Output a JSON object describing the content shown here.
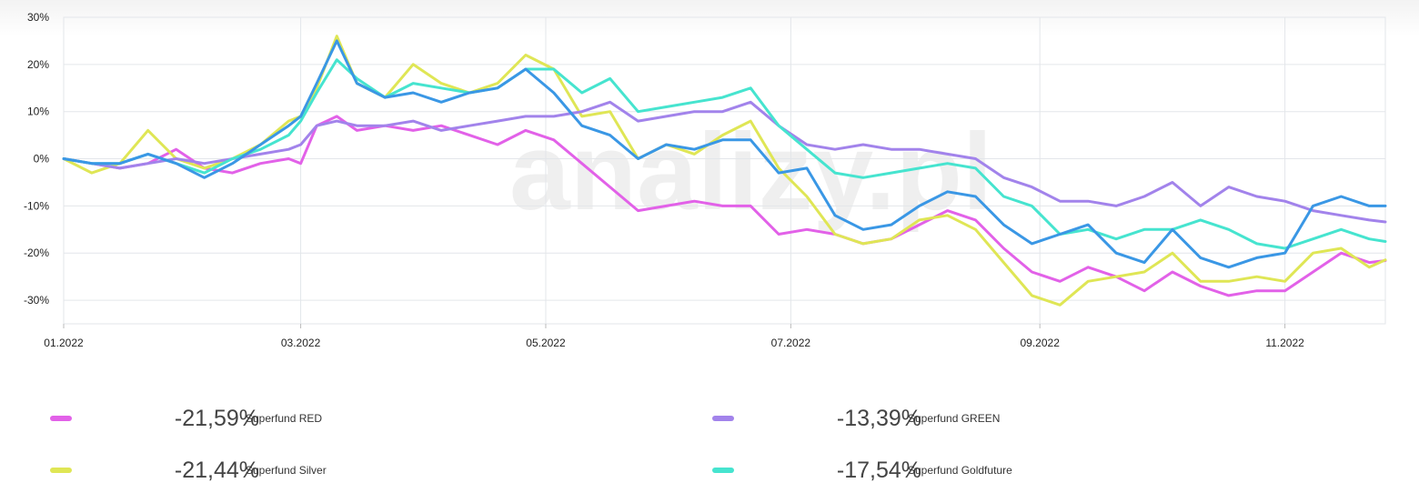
{
  "chart_data": {
    "type": "line",
    "y_ticks": [
      "30%",
      "20%",
      "10%",
      "0%",
      "-10%",
      "-20%",
      "-30%"
    ],
    "y_tick_values": [
      30,
      20,
      10,
      0,
      -10,
      -20,
      -30
    ],
    "x_ticks": [
      "01.2022",
      "03.2022",
      "05.2022",
      "07.2022",
      "09.2022",
      "11.2022"
    ],
    "x_tick_values": [
      "2022-01-01",
      "2022-03-01",
      "2022-05-01",
      "2022-07-01",
      "2022-09-01",
      "2022-11-01"
    ],
    "xlim": [
      "2022-01-01",
      "2022-11-26"
    ],
    "ylim": [
      -35,
      30
    ],
    "grid": true,
    "series": [
      {
        "name": "Superfund RED",
        "color": "#e261e8",
        "value_label": "-21,59%",
        "points": [
          [
            "2022-01-01",
            0
          ],
          [
            "2022-01-08",
            -1
          ],
          [
            "2022-01-15",
            -2
          ],
          [
            "2022-01-22",
            -1
          ],
          [
            "2022-01-29",
            2
          ],
          [
            "2022-02-05",
            -2
          ],
          [
            "2022-02-12",
            -3
          ],
          [
            "2022-02-19",
            -1
          ],
          [
            "2022-02-26",
            0
          ],
          [
            "2022-03-01",
            -1
          ],
          [
            "2022-03-05",
            7
          ],
          [
            "2022-03-10",
            9
          ],
          [
            "2022-03-15",
            6
          ],
          [
            "2022-03-22",
            7
          ],
          [
            "2022-03-29",
            6
          ],
          [
            "2022-04-05",
            7
          ],
          [
            "2022-04-12",
            5
          ],
          [
            "2022-04-19",
            3
          ],
          [
            "2022-04-26",
            6
          ],
          [
            "2022-05-03",
            4
          ],
          [
            "2022-05-10",
            -1
          ],
          [
            "2022-05-17",
            -6
          ],
          [
            "2022-05-24",
            -11
          ],
          [
            "2022-05-31",
            -10
          ],
          [
            "2022-06-07",
            -9
          ],
          [
            "2022-06-14",
            -10
          ],
          [
            "2022-06-21",
            -10
          ],
          [
            "2022-06-28",
            -16
          ],
          [
            "2022-07-05",
            -15
          ],
          [
            "2022-07-12",
            -16
          ],
          [
            "2022-07-19",
            -18
          ],
          [
            "2022-07-26",
            -17
          ],
          [
            "2022-08-02",
            -14
          ],
          [
            "2022-08-09",
            -11
          ],
          [
            "2022-08-16",
            -13
          ],
          [
            "2022-08-23",
            -19
          ],
          [
            "2022-08-30",
            -24
          ],
          [
            "2022-09-06",
            -26
          ],
          [
            "2022-09-13",
            -23
          ],
          [
            "2022-09-20",
            -25
          ],
          [
            "2022-09-27",
            -28
          ],
          [
            "2022-10-04",
            -24
          ],
          [
            "2022-10-11",
            -27
          ],
          [
            "2022-10-18",
            -29
          ],
          [
            "2022-10-25",
            -28
          ],
          [
            "2022-11-01",
            -28
          ],
          [
            "2022-11-08",
            -24
          ],
          [
            "2022-11-15",
            -20
          ],
          [
            "2022-11-22",
            -22
          ],
          [
            "2022-11-26",
            -21.59
          ]
        ]
      },
      {
        "name": "Superfund Silver",
        "color": "#dfe655",
        "value_label": "-21,44%",
        "points": [
          [
            "2022-01-01",
            0
          ],
          [
            "2022-01-08",
            -3
          ],
          [
            "2022-01-15",
            -1
          ],
          [
            "2022-01-22",
            6
          ],
          [
            "2022-01-29",
            0
          ],
          [
            "2022-02-05",
            -2
          ],
          [
            "2022-02-12",
            0
          ],
          [
            "2022-02-19",
            3
          ],
          [
            "2022-02-26",
            8
          ],
          [
            "2022-03-01",
            9
          ],
          [
            "2022-03-05",
            15
          ],
          [
            "2022-03-10",
            26
          ],
          [
            "2022-03-15",
            16
          ],
          [
            "2022-03-22",
            13
          ],
          [
            "2022-03-29",
            20
          ],
          [
            "2022-04-05",
            16
          ],
          [
            "2022-04-12",
            14
          ],
          [
            "2022-04-19",
            16
          ],
          [
            "2022-04-26",
            22
          ],
          [
            "2022-05-03",
            19
          ],
          [
            "2022-05-10",
            9
          ],
          [
            "2022-05-17",
            10
          ],
          [
            "2022-05-24",
            0
          ],
          [
            "2022-05-31",
            3
          ],
          [
            "2022-06-07",
            1
          ],
          [
            "2022-06-14",
            5
          ],
          [
            "2022-06-21",
            8
          ],
          [
            "2022-06-28",
            -2
          ],
          [
            "2022-07-05",
            -8
          ],
          [
            "2022-07-12",
            -16
          ],
          [
            "2022-07-19",
            -18
          ],
          [
            "2022-07-26",
            -17
          ],
          [
            "2022-08-02",
            -13
          ],
          [
            "2022-08-09",
            -12
          ],
          [
            "2022-08-16",
            -15
          ],
          [
            "2022-08-23",
            -22
          ],
          [
            "2022-08-30",
            -29
          ],
          [
            "2022-09-06",
            -31
          ],
          [
            "2022-09-13",
            -26
          ],
          [
            "2022-09-20",
            -25
          ],
          [
            "2022-09-27",
            -24
          ],
          [
            "2022-10-04",
            -20
          ],
          [
            "2022-10-11",
            -26
          ],
          [
            "2022-10-18",
            -26
          ],
          [
            "2022-10-25",
            -25
          ],
          [
            "2022-11-01",
            -26
          ],
          [
            "2022-11-08",
            -20
          ],
          [
            "2022-11-15",
            -19
          ],
          [
            "2022-11-22",
            -23
          ],
          [
            "2022-11-26",
            -21.44
          ]
        ]
      },
      {
        "name": "Superfund GREEN",
        "color": "#a283eb",
        "value_label": "-13,39%",
        "points": [
          [
            "2022-01-01",
            0
          ],
          [
            "2022-01-08",
            -1
          ],
          [
            "2022-01-15",
            -2
          ],
          [
            "2022-01-22",
            -1
          ],
          [
            "2022-01-29",
            0
          ],
          [
            "2022-02-05",
            -1
          ],
          [
            "2022-02-12",
            0
          ],
          [
            "2022-02-19",
            1
          ],
          [
            "2022-02-26",
            2
          ],
          [
            "2022-03-01",
            3
          ],
          [
            "2022-03-05",
            7
          ],
          [
            "2022-03-10",
            8
          ],
          [
            "2022-03-15",
            7
          ],
          [
            "2022-03-22",
            7
          ],
          [
            "2022-03-29",
            8
          ],
          [
            "2022-04-05",
            6
          ],
          [
            "2022-04-12",
            7
          ],
          [
            "2022-04-19",
            8
          ],
          [
            "2022-04-26",
            9
          ],
          [
            "2022-05-03",
            9
          ],
          [
            "2022-05-10",
            10
          ],
          [
            "2022-05-17",
            12
          ],
          [
            "2022-05-24",
            8
          ],
          [
            "2022-05-31",
            9
          ],
          [
            "2022-06-07",
            10
          ],
          [
            "2022-06-14",
            10
          ],
          [
            "2022-06-21",
            12
          ],
          [
            "2022-06-28",
            7
          ],
          [
            "2022-07-05",
            3
          ],
          [
            "2022-07-12",
            2
          ],
          [
            "2022-07-19",
            3
          ],
          [
            "2022-07-26",
            2
          ],
          [
            "2022-08-02",
            2
          ],
          [
            "2022-08-09",
            1
          ],
          [
            "2022-08-16",
            0
          ],
          [
            "2022-08-23",
            -4
          ],
          [
            "2022-08-30",
            -6
          ],
          [
            "2022-09-06",
            -9
          ],
          [
            "2022-09-13",
            -9
          ],
          [
            "2022-09-20",
            -10
          ],
          [
            "2022-09-27",
            -8
          ],
          [
            "2022-10-04",
            -5
          ],
          [
            "2022-10-11",
            -10
          ],
          [
            "2022-10-18",
            -6
          ],
          [
            "2022-10-25",
            -8
          ],
          [
            "2022-11-01",
            -9
          ],
          [
            "2022-11-08",
            -11
          ],
          [
            "2022-11-15",
            -12
          ],
          [
            "2022-11-22",
            -13
          ],
          [
            "2022-11-26",
            -13.39
          ]
        ]
      },
      {
        "name": "Superfund Goldfuture",
        "color": "#46e4cf",
        "value_label": "-17,54%",
        "points": [
          [
            "2022-01-01",
            0
          ],
          [
            "2022-01-08",
            -1
          ],
          [
            "2022-01-15",
            -1
          ],
          [
            "2022-01-22",
            1
          ],
          [
            "2022-01-29",
            -1
          ],
          [
            "2022-02-05",
            -3
          ],
          [
            "2022-02-12",
            0
          ],
          [
            "2022-02-19",
            2
          ],
          [
            "2022-02-26",
            5
          ],
          [
            "2022-03-01",
            8
          ],
          [
            "2022-03-05",
            14
          ],
          [
            "2022-03-10",
            21
          ],
          [
            "2022-03-15",
            17
          ],
          [
            "2022-03-22",
            13
          ],
          [
            "2022-03-29",
            16
          ],
          [
            "2022-04-05",
            15
          ],
          [
            "2022-04-12",
            14
          ],
          [
            "2022-04-19",
            15
          ],
          [
            "2022-04-26",
            19
          ],
          [
            "2022-05-03",
            19
          ],
          [
            "2022-05-10",
            14
          ],
          [
            "2022-05-17",
            17
          ],
          [
            "2022-05-24",
            10
          ],
          [
            "2022-05-31",
            11
          ],
          [
            "2022-06-07",
            12
          ],
          [
            "2022-06-14",
            13
          ],
          [
            "2022-06-21",
            15
          ],
          [
            "2022-06-28",
            7
          ],
          [
            "2022-07-05",
            2
          ],
          [
            "2022-07-12",
            -3
          ],
          [
            "2022-07-19",
            -4
          ],
          [
            "2022-07-26",
            -3
          ],
          [
            "2022-08-02",
            -2
          ],
          [
            "2022-08-09",
            -1
          ],
          [
            "2022-08-16",
            -2
          ],
          [
            "2022-08-23",
            -8
          ],
          [
            "2022-08-30",
            -10
          ],
          [
            "2022-09-06",
            -16
          ],
          [
            "2022-09-13",
            -15
          ],
          [
            "2022-09-20",
            -17
          ],
          [
            "2022-09-27",
            -15
          ],
          [
            "2022-10-04",
            -15
          ],
          [
            "2022-10-11",
            -13
          ],
          [
            "2022-10-18",
            -15
          ],
          [
            "2022-10-25",
            -18
          ],
          [
            "2022-11-01",
            -19
          ],
          [
            "2022-11-08",
            -17
          ],
          [
            "2022-11-15",
            -15
          ],
          [
            "2022-11-22",
            -17
          ],
          [
            "2022-11-26",
            -17.54
          ]
        ]
      },
      {
        "name": "",
        "color": "#3a97e5",
        "value_label": "",
        "points": [
          [
            "2022-01-01",
            0
          ],
          [
            "2022-01-08",
            -1
          ],
          [
            "2022-01-15",
            -1
          ],
          [
            "2022-01-22",
            1
          ],
          [
            "2022-01-29",
            -1
          ],
          [
            "2022-02-05",
            -4
          ],
          [
            "2022-02-12",
            -1
          ],
          [
            "2022-02-19",
            3
          ],
          [
            "2022-02-26",
            7
          ],
          [
            "2022-03-01",
            9
          ],
          [
            "2022-03-05",
            16
          ],
          [
            "2022-03-10",
            25
          ],
          [
            "2022-03-15",
            16
          ],
          [
            "2022-03-22",
            13
          ],
          [
            "2022-03-29",
            14
          ],
          [
            "2022-04-05",
            12
          ],
          [
            "2022-04-12",
            14
          ],
          [
            "2022-04-19",
            15
          ],
          [
            "2022-04-26",
            19
          ],
          [
            "2022-05-03",
            14
          ],
          [
            "2022-05-10",
            7
          ],
          [
            "2022-05-17",
            5
          ],
          [
            "2022-05-24",
            0
          ],
          [
            "2022-05-31",
            3
          ],
          [
            "2022-06-07",
            2
          ],
          [
            "2022-06-14",
            4
          ],
          [
            "2022-06-21",
            4
          ],
          [
            "2022-06-28",
            -3
          ],
          [
            "2022-07-05",
            -2
          ],
          [
            "2022-07-12",
            -12
          ],
          [
            "2022-07-19",
            -15
          ],
          [
            "2022-07-26",
            -14
          ],
          [
            "2022-08-02",
            -10
          ],
          [
            "2022-08-09",
            -7
          ],
          [
            "2022-08-16",
            -8
          ],
          [
            "2022-08-23",
            -14
          ],
          [
            "2022-08-30",
            -18
          ],
          [
            "2022-09-06",
            -16
          ],
          [
            "2022-09-13",
            -14
          ],
          [
            "2022-09-20",
            -20
          ],
          [
            "2022-09-27",
            -22
          ],
          [
            "2022-10-04",
            -15
          ],
          [
            "2022-10-11",
            -21
          ],
          [
            "2022-10-18",
            -23
          ],
          [
            "2022-10-25",
            -21
          ],
          [
            "2022-11-01",
            -20
          ],
          [
            "2022-11-08",
            -10
          ],
          [
            "2022-11-15",
            -8
          ],
          [
            "2022-11-22",
            -10
          ],
          [
            "2022-11-26",
            -10
          ]
        ]
      }
    ],
    "legend": [
      {
        "name": "Superfund RED",
        "value": "-21,59%",
        "color": "#e261e8"
      },
      {
        "name": "Superfund GREEN",
        "value": "-13,39%",
        "color": "#a283eb"
      },
      {
        "name": "Superfund Silver",
        "value": "-21,44%",
        "color": "#dfe655"
      },
      {
        "name": "Superfund Goldfuture",
        "value": "-17,54%",
        "color": "#46e4cf"
      }
    ],
    "watermark": "analizy.pl"
  }
}
